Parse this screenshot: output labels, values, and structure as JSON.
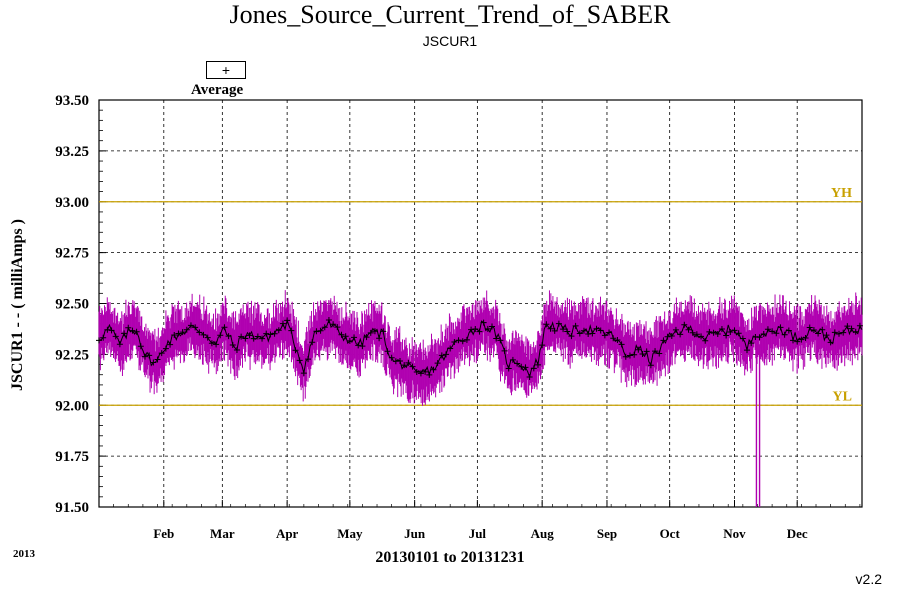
{
  "chart_data": {
    "type": "line",
    "title": "Jones_Source_Current_Trend_of_SABER",
    "subtitle": "JSCUR1",
    "xlabel": "20130101 to 20131231",
    "ylabel": "JSCUR1 - - ( milliAmps )",
    "year_label": "2013",
    "version": "v2.2",
    "ylim": [
      91.5,
      93.5
    ],
    "yticks": [
      "91.50",
      "91.75",
      "92.00",
      "92.25",
      "92.50",
      "92.75",
      "93.00",
      "93.25",
      "93.50"
    ],
    "x_range_days": [
      0,
      365
    ],
    "months": [
      {
        "label": "Feb",
        "day": 31
      },
      {
        "label": "Mar",
        "day": 59
      },
      {
        "label": "Apr",
        "day": 90
      },
      {
        "label": "May",
        "day": 120
      },
      {
        "label": "Jun",
        "day": 151
      },
      {
        "label": "Jul",
        "day": 181
      },
      {
        "label": "Aug",
        "day": 212
      },
      {
        "label": "Sep",
        "day": 243
      },
      {
        "label": "Oct",
        "day": 273
      },
      {
        "label": "Nov",
        "day": 304
      },
      {
        "label": "Dec",
        "day": 334
      }
    ],
    "limits": [
      {
        "label": "YH",
        "value": 93.0,
        "color": "#c8a000"
      },
      {
        "label": "YL",
        "value": 92.0,
        "color": "#c8a000"
      }
    ],
    "legend": {
      "symbol": "+",
      "label": "Average",
      "placement": "top-left"
    },
    "grid": true,
    "series_color_range": "#b000b0",
    "series_color_average": "#000000",
    "average_anchors": [
      [
        0,
        92.33
      ],
      [
        5,
        92.38
      ],
      [
        10,
        92.3
      ],
      [
        14,
        92.36
      ],
      [
        18,
        92.37
      ],
      [
        22,
        92.25
      ],
      [
        27,
        92.2
      ],
      [
        32,
        92.3
      ],
      [
        38,
        92.35
      ],
      [
        44,
        92.38
      ],
      [
        50,
        92.36
      ],
      [
        56,
        92.3
      ],
      [
        60,
        92.38
      ],
      [
        65,
        92.28
      ],
      [
        70,
        92.35
      ],
      [
        80,
        92.33
      ],
      [
        90,
        92.4
      ],
      [
        98,
        92.18
      ],
      [
        103,
        92.35
      ],
      [
        110,
        92.4
      ],
      [
        118,
        92.33
      ],
      [
        125,
        92.3
      ],
      [
        130,
        92.36
      ],
      [
        136,
        92.35
      ],
      [
        140,
        92.22
      ],
      [
        146,
        92.2
      ],
      [
        152,
        92.15
      ],
      [
        160,
        92.18
      ],
      [
        170,
        92.3
      ],
      [
        178,
        92.36
      ],
      [
        184,
        92.4
      ],
      [
        190,
        92.35
      ],
      [
        196,
        92.2
      ],
      [
        200,
        92.22
      ],
      [
        206,
        92.16
      ],
      [
        210,
        92.22
      ],
      [
        214,
        92.4
      ],
      [
        220,
        92.38
      ],
      [
        226,
        92.36
      ],
      [
        232,
        92.38
      ],
      [
        238,
        92.36
      ],
      [
        244,
        92.35
      ],
      [
        248,
        92.32
      ],
      [
        252,
        92.24
      ],
      [
        258,
        92.28
      ],
      [
        264,
        92.22
      ],
      [
        270,
        92.3
      ],
      [
        276,
        92.36
      ],
      [
        282,
        92.38
      ],
      [
        290,
        92.33
      ],
      [
        298,
        92.36
      ],
      [
        304,
        92.38
      ],
      [
        310,
        92.28
      ],
      [
        314,
        92.36
      ],
      [
        320,
        92.35
      ],
      [
        326,
        92.38
      ],
      [
        334,
        92.33
      ],
      [
        342,
        92.38
      ],
      [
        350,
        92.32
      ],
      [
        356,
        92.36
      ],
      [
        365,
        92.38
      ]
    ],
    "range_halfwidth": 0.12,
    "dropouts": [
      {
        "day": 314.5,
        "min": 91.5,
        "max": 92.3
      },
      {
        "day": 316.0,
        "min": 91.5,
        "max": 92.3
      }
    ]
  }
}
